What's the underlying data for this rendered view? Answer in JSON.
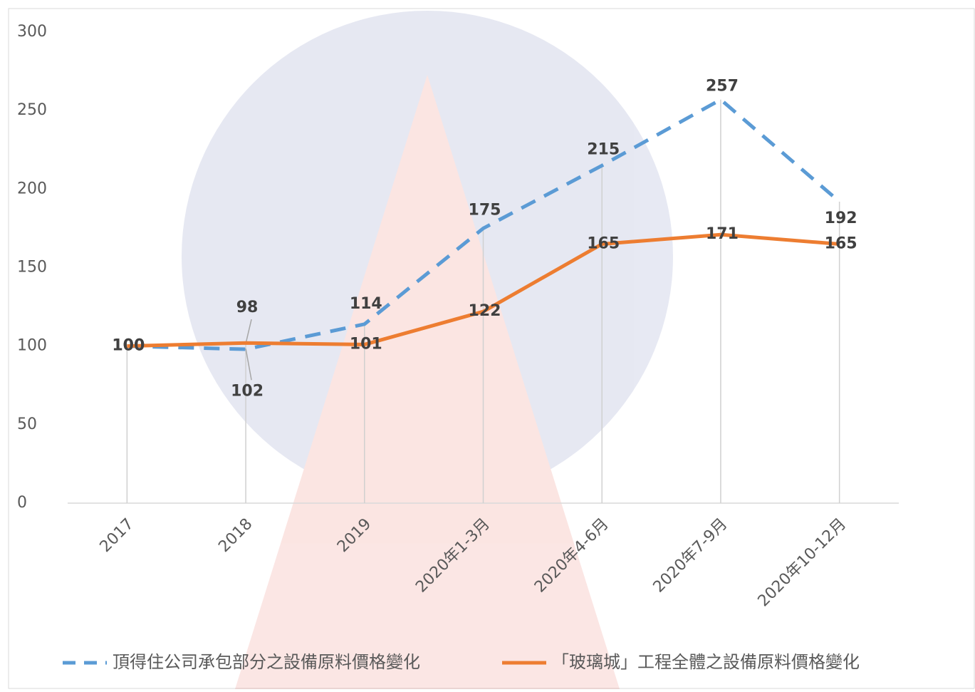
{
  "chart_data": {
    "type": "line",
    "categories": [
      "2017",
      "2018",
      "2019",
      "2020年1-3月",
      "2020年4-6月",
      "2020年7-9月",
      "2020年10-12月"
    ],
    "series": [
      {
        "name": "頂得住公司承包部分之設備原料價格變化",
        "color": "#5b9bd5",
        "line_style": "dashed",
        "values": [
          100,
          98,
          114,
          175,
          215,
          257,
          192
        ]
      },
      {
        "name": "「玻璃城」工程全體之設備原料價格變化",
        "color": "#ed7d31",
        "line_style": "solid",
        "values": [
          100,
          102,
          101,
          122,
          165,
          171,
          165
        ]
      }
    ],
    "ylim": [
      0,
      300
    ],
    "yticks": [
      0,
      50,
      100,
      150,
      200,
      250,
      300
    ],
    "category_lines": true,
    "legend": "bottom"
  }
}
